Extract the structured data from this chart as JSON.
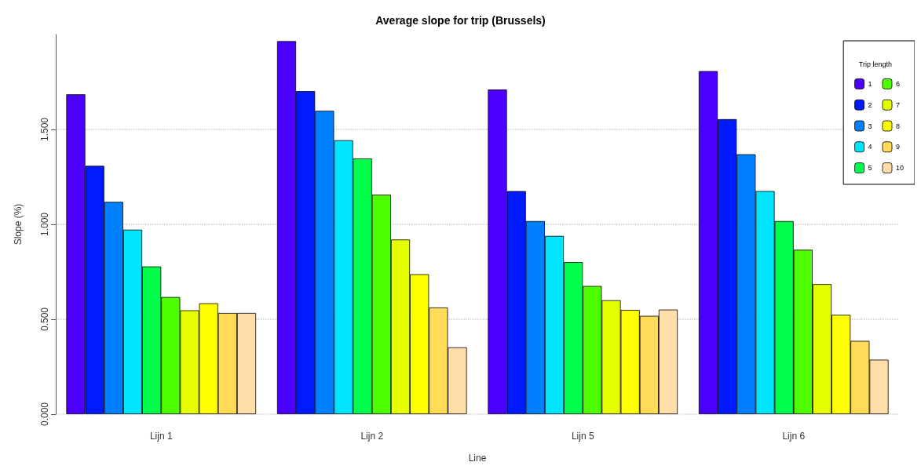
{
  "chart_data": {
    "type": "bar",
    "title": "Average slope for trip (Brussels)",
    "xlabel": "Line",
    "ylabel": "Slope (%)",
    "legend_title": "Trip length",
    "categories": [
      "Lijn 1",
      "Lijn 2",
      "Lijn 5",
      "Lijn 6"
    ],
    "series": [
      {
        "name": "1",
        "color": "#4b00ff",
        "values": [
          1.685,
          1.965,
          1.71,
          1.807
        ]
      },
      {
        "name": "2",
        "color": "#001aff",
        "values": [
          1.308,
          1.702,
          1.175,
          1.554
        ]
      },
      {
        "name": "3",
        "color": "#0080ff",
        "values": [
          1.118,
          1.598,
          1.017,
          1.369
        ]
      },
      {
        "name": "4",
        "color": "#00e5ff",
        "values": [
          0.972,
          1.443,
          0.939,
          1.175
        ]
      },
      {
        "name": "5",
        "color": "#00ff4d",
        "values": [
          0.778,
          1.347,
          0.801,
          1.017
        ]
      },
      {
        "name": "6",
        "color": "#4dff00",
        "values": [
          0.617,
          1.156,
          0.675,
          0.866
        ]
      },
      {
        "name": "7",
        "color": "#e6ff00",
        "values": [
          0.547,
          0.92,
          0.6,
          0.685
        ]
      },
      {
        "name": "8",
        "color": "#ffff00",
        "values": [
          0.584,
          0.737,
          0.549,
          0.523
        ]
      },
      {
        "name": "9",
        "color": "#ffdb58",
        "values": [
          0.533,
          0.562,
          0.518,
          0.386
        ]
      },
      {
        "name": "10",
        "color": "#ffdeaa",
        "values": [
          0.533,
          0.352,
          0.551,
          0.287
        ]
      }
    ],
    "ylim": [
      0,
      2
    ],
    "yticks": [
      {
        "value": 0,
        "label": "0.000"
      },
      {
        "value": 0.5,
        "label": "0.500"
      },
      {
        "value": 1,
        "label": "1.000"
      },
      {
        "value": 1.5,
        "label": "1.500"
      }
    ],
    "grid": "y",
    "legend": "top right"
  }
}
